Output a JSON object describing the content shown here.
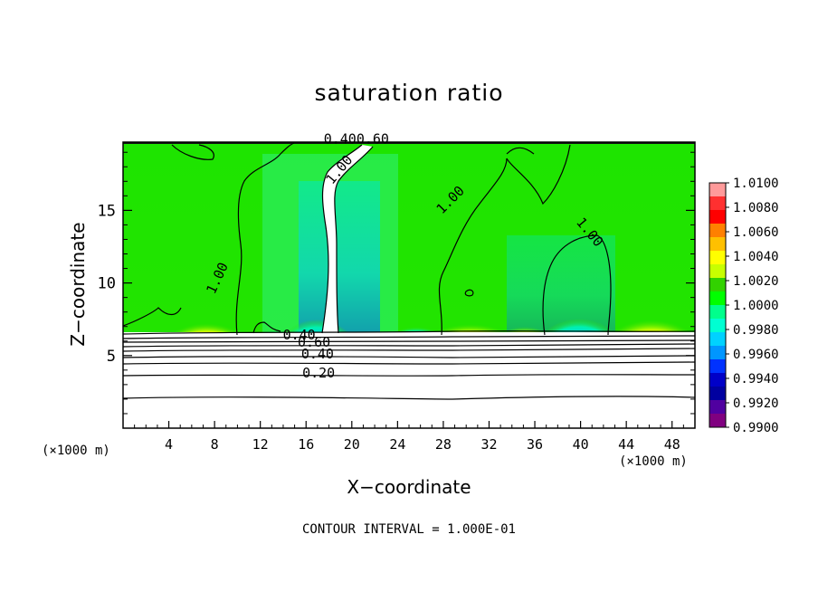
{
  "title": "saturation ratio",
  "xlabel": "X−coordinate",
  "ylabel": "Z−coordinate",
  "x_unit_left": "(×1000 m)",
  "x_unit_right": "(×1000 m)",
  "footer": "CONTOUR INTERVAL = 1.000E-01",
  "chart_data": {
    "type": "heatmap",
    "title": "saturation ratio",
    "xlabel": "X−coordinate",
    "ylabel": "Z−coordinate",
    "x_range": [
      0,
      50
    ],
    "y_range": [
      0,
      19.7
    ],
    "x_ticks": [
      4,
      8,
      12,
      16,
      20,
      24,
      28,
      32,
      36,
      40,
      44,
      48
    ],
    "y_ticks": [
      5,
      10,
      15
    ],
    "colorbar": {
      "labels": [
        "1.0100",
        "1.0080",
        "1.0060",
        "1.0040",
        "1.0020",
        "1.0000",
        "0.9980",
        "0.9960",
        "0.9940",
        "0.9920",
        "0.9900"
      ],
      "colors": [
        "#ff9a9a",
        "#ff3030",
        "#ff0000",
        "#ff8000",
        "#ffc000",
        "#ffff00",
        "#c8ff00",
        "#32d200",
        "#00ff00",
        "#00ff8c",
        "#00ffd2",
        "#00d2ff",
        "#0096ff",
        "#0032ff",
        "#0000c8",
        "#0000a0",
        "#5000a0",
        "#800080"
      ]
    },
    "contour_labels": [
      {
        "text": "1.00",
        "x": 8.6,
        "y": 10.2,
        "rotate": -65
      },
      {
        "text": "1.00",
        "x": 19.2,
        "y": 17.6,
        "rotate": -50
      },
      {
        "text": "1.00",
        "x": 28.9,
        "y": 15.5,
        "rotate": -45
      },
      {
        "text": "1.00",
        "x": 40.5,
        "y": 13.3,
        "rotate": 50
      },
      {
        "text": "0.400.60",
        "x": 20.4,
        "y": 19.6,
        "rotate": 0
      },
      {
        "text": "0.40",
        "x": 15.4,
        "y": 6.1,
        "rotate": 0
      },
      {
        "text": "0.60",
        "x": 16.7,
        "y": 5.6,
        "rotate": 0
      },
      {
        "text": "0.40",
        "x": 17.0,
        "y": 4.8,
        "rotate": 0
      },
      {
        "text": "0.20",
        "x": 17.1,
        "y": 3.5,
        "rotate": 0
      }
    ],
    "contour_interval": "1.000E-01"
  }
}
